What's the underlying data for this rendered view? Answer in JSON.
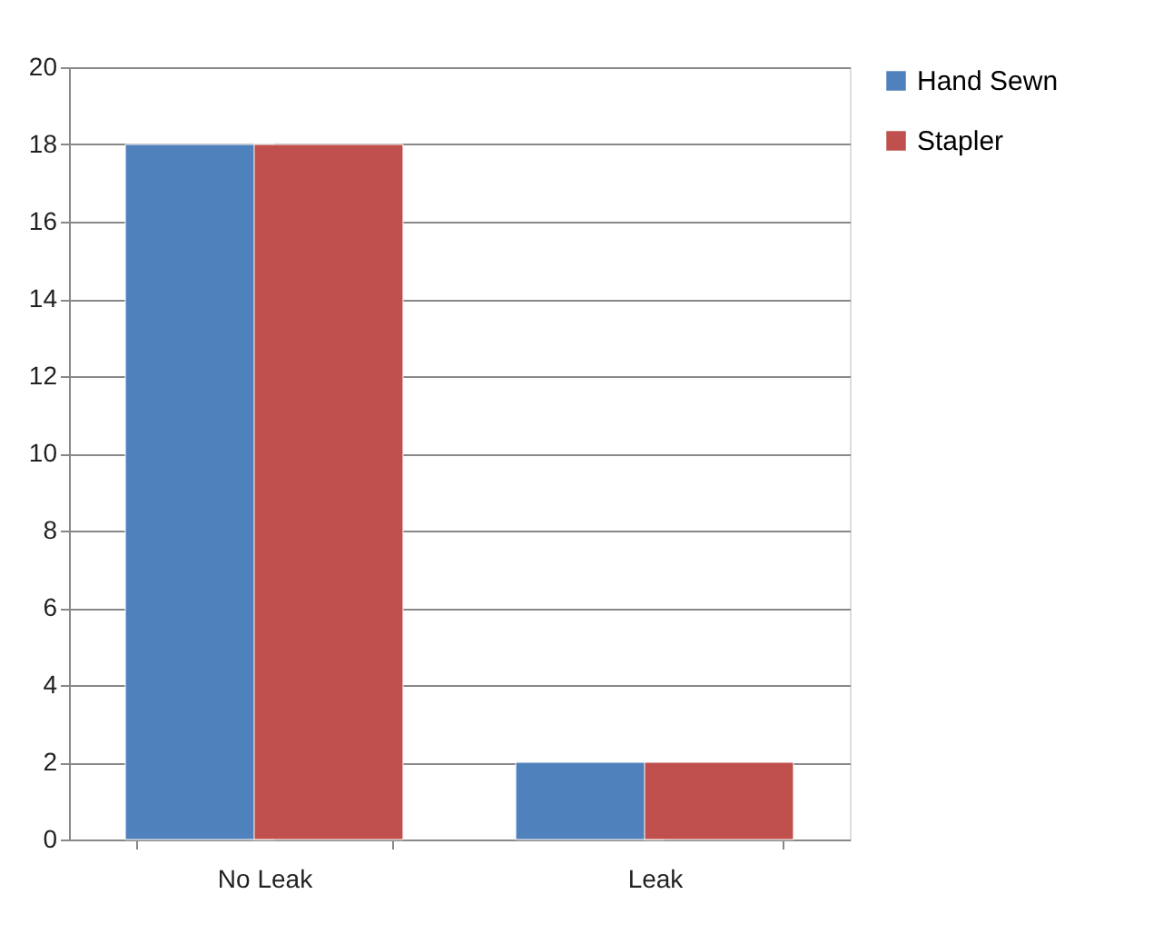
{
  "chart_data": {
    "type": "bar",
    "categories": [
      "No Leak",
      "Leak"
    ],
    "series": [
      {
        "name": "Hand Sewn",
        "color": "#4f81bd",
        "values": [
          18,
          2
        ]
      },
      {
        "name": "Stapler",
        "color": "#c0504d",
        "values": [
          18,
          2
        ]
      }
    ],
    "ylim": [
      0,
      20
    ],
    "yticks": [
      0,
      2,
      4,
      6,
      8,
      10,
      12,
      14,
      16,
      18,
      20
    ],
    "grid": "y",
    "legend": "right"
  }
}
